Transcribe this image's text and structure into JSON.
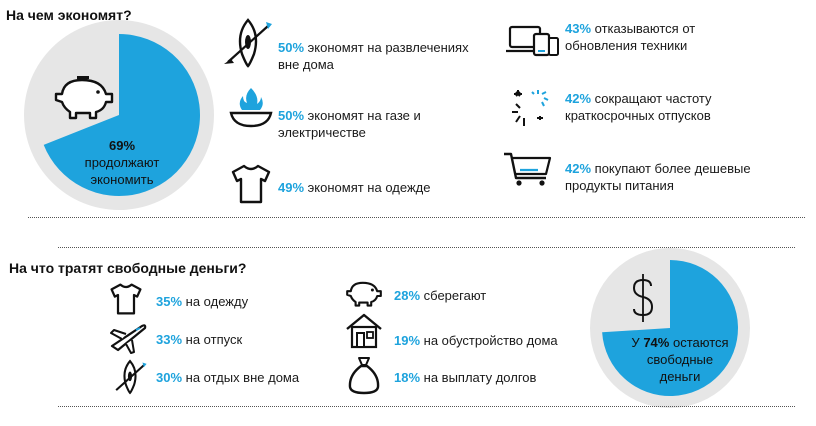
{
  "section1": {
    "title": "На чем экономят?",
    "pie": {
      "value": 69,
      "pct_label": "69%",
      "caption_line1": "продолжают",
      "caption_line2": "экономить"
    },
    "items": [
      {
        "pct": "50%",
        "line1": "экономят на развлечениях",
        "line2": "вне дома",
        "icon": "kayak-icon"
      },
      {
        "pct": "50%",
        "line1": "экономят на газе и",
        "line2": "электричестве",
        "icon": "gas-flame-icon"
      },
      {
        "pct": "49%",
        "line1": "экономят на одежде",
        "line2": "",
        "icon": "tshirt-icon"
      },
      {
        "pct": "43%",
        "line1": "отказываются от",
        "line2": "обновления техники",
        "icon": "devices-icon"
      },
      {
        "pct": "42%",
        "line1": "сокращают частоту",
        "line2": "краткосрочных отпусков",
        "icon": "sparkle-icon"
      },
      {
        "pct": "42%",
        "line1": "покупают более дешевые",
        "line2": "продукты питания",
        "icon": "shopping-cart-icon"
      }
    ]
  },
  "section2": {
    "title": "На что тратят свободные деньги?",
    "pie": {
      "value": 74,
      "prefix": "У",
      "pct_label": "74%",
      "line1_suffix": "остаются",
      "line2": "свободные",
      "line3": "деньги"
    },
    "items": [
      {
        "pct": "35%",
        "label": "на одежду",
        "icon": "tshirt-icon"
      },
      {
        "pct": "33%",
        "label": "на отпуск",
        "icon": "airplane-icon"
      },
      {
        "pct": "30%",
        "label": "на отдых вне дома",
        "icon": "kayak-icon"
      },
      {
        "pct": "28%",
        "label": "сберегают",
        "icon": "piggy-bank-icon"
      },
      {
        "pct": "19%",
        "label": "на обустройство дома",
        "icon": "house-icon"
      },
      {
        "pct": "18%",
        "label": "на выплату долгов",
        "icon": "money-bag-icon"
      }
    ]
  },
  "chart_data": [
    {
      "type": "pie",
      "title": "На чем экономят?",
      "categories": [
        "продолжают экономить",
        ""
      ],
      "values": [
        69,
        31
      ]
    },
    {
      "type": "pie",
      "title": "На что тратят свободные деньги?",
      "categories": [
        "остаются свободные деньги",
        ""
      ],
      "values": [
        74,
        26
      ]
    },
    {
      "type": "table",
      "title": "На чем экономят?",
      "rows": [
        [
          "50%",
          "экономят на развлечениях вне дома"
        ],
        [
          "50%",
          "экономят на газе и электричестве"
        ],
        [
          "49%",
          "экономят на одежде"
        ],
        [
          "43%",
          "отказываются от обновления техники"
        ],
        [
          "42%",
          "сокращают частоту краткосрочных отпусков"
        ],
        [
          "42%",
          "покупают более дешевые продукты питания"
        ]
      ]
    },
    {
      "type": "table",
      "title": "На что тратят свободные деньги?",
      "rows": [
        [
          "35%",
          "на одежду"
        ],
        [
          "33%",
          "на отпуск"
        ],
        [
          "30%",
          "на отдых вне дома"
        ],
        [
          "28%",
          "сберегают"
        ],
        [
          "19%",
          "на обустройство дома"
        ],
        [
          "18%",
          "на выплату долгов"
        ]
      ]
    }
  ],
  "colors": {
    "accent": "#1ea3dd",
    "pie_rest": "#e6e6e6",
    "text": "#1a1a1a"
  }
}
